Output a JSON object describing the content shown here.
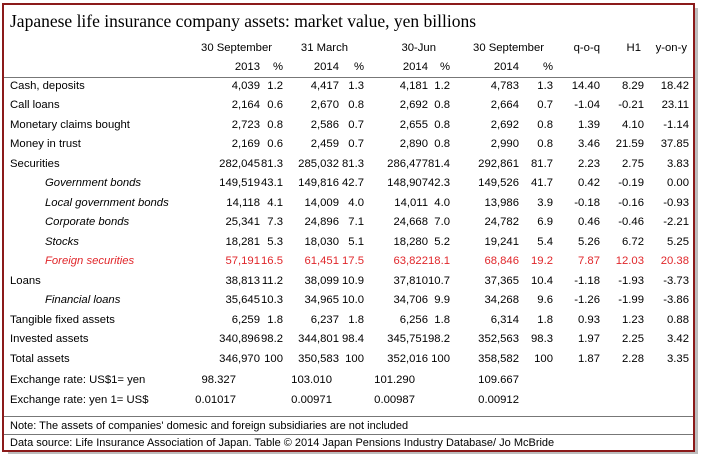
{
  "title": "Japanese life insurance company assets: market value, yen billions",
  "header1": [
    "30 September",
    "31 March",
    "30-Jun",
    "30 September",
    "q-o-q",
    "H1",
    "y-on-y"
  ],
  "header2": [
    "2013",
    "%",
    "2014",
    "%",
    "2014",
    "%",
    "2014",
    "%"
  ],
  "rows": [
    {
      "label": "Cash, deposits",
      "indent": false,
      "red": false,
      "values": [
        "4,039",
        "1.2",
        "4,417",
        "1.3",
        "4,181",
        "1.2",
        "4,783",
        "1.3",
        "14.40",
        "8.29",
        "18.42"
      ]
    },
    {
      "label": "Call loans",
      "indent": false,
      "red": false,
      "values": [
        "2,164",
        "0.6",
        "2,670",
        "0.8",
        "2,692",
        "0.8",
        "2,664",
        "0.7",
        "-1.04",
        "-0.21",
        "23.11"
      ]
    },
    {
      "label": "Monetary claims bought",
      "indent": false,
      "red": false,
      "values": [
        "2,723",
        "0.8",
        "2,586",
        "0.7",
        "2,655",
        "0.8",
        "2,692",
        "0.8",
        "1.39",
        "4.10",
        "-1.14"
      ]
    },
    {
      "label": "Money in trust",
      "indent": false,
      "red": false,
      "values": [
        "2,169",
        "0.6",
        "2,459",
        "0.7",
        "2,890",
        "0.8",
        "2,990",
        "0.8",
        "3.46",
        "21.59",
        "37.85"
      ]
    },
    {
      "label": "Securities",
      "indent": false,
      "red": false,
      "values": [
        "282,045",
        "81.3",
        "285,032",
        "81.3",
        "286,477",
        "81.4",
        "292,861",
        "81.7",
        "2.23",
        "2.75",
        "3.83"
      ]
    },
    {
      "label": "Government bonds",
      "indent": true,
      "red": false,
      "values": [
        "149,519",
        "43.1",
        "149,816",
        "42.7",
        "148,907",
        "42.3",
        "149,526",
        "41.7",
        "0.42",
        "-0.19",
        "0.00"
      ]
    },
    {
      "label": "Local government bonds",
      "indent": true,
      "red": false,
      "values": [
        "14,118",
        "4.1",
        "14,009",
        "4.0",
        "14,011",
        "4.0",
        "13,986",
        "3.9",
        "-0.18",
        "-0.16",
        "-0.93"
      ]
    },
    {
      "label": "Corporate bonds",
      "indent": true,
      "red": false,
      "values": [
        "25,341",
        "7.3",
        "24,896",
        "7.1",
        "24,668",
        "7.0",
        "24,782",
        "6.9",
        "0.46",
        "-0.46",
        "-2.21"
      ]
    },
    {
      "label": "Stocks",
      "indent": true,
      "red": false,
      "values": [
        "18,281",
        "5.3",
        "18,030",
        "5.1",
        "18,280",
        "5.2",
        "19,241",
        "5.4",
        "5.26",
        "6.72",
        "5.25"
      ]
    },
    {
      "label": "Foreign securities",
      "indent": true,
      "red": true,
      "values": [
        "57,191",
        "16.5",
        "61,451",
        "17.5",
        "63,822",
        "18.1",
        "68,846",
        "19.2",
        "7.87",
        "12.03",
        "20.38"
      ]
    },
    {
      "label": "Loans",
      "indent": false,
      "red": false,
      "values": [
        "38,813",
        "11.2",
        "38,099",
        "10.9",
        "37,810",
        "10.7",
        "37,365",
        "10.4",
        "-1.18",
        "-1.93",
        "-3.73"
      ]
    },
    {
      "label": "Financial loans",
      "indent": true,
      "red": false,
      "values": [
        "35,645",
        "10.3",
        "34,965",
        "10.0",
        "34,706",
        "9.9",
        "34,268",
        "9.6",
        "-1.26",
        "-1.99",
        "-3.86"
      ]
    },
    {
      "label": "Tangible fixed assets",
      "indent": false,
      "red": false,
      "values": [
        "6,259",
        "1.8",
        "6,237",
        "1.8",
        "6,256",
        "1.8",
        "6,314",
        "1.8",
        "0.93",
        "1.23",
        "0.88"
      ]
    },
    {
      "label": "Invested assets",
      "indent": false,
      "red": false,
      "values": [
        "340,896",
        "98.2",
        "344,801",
        "98.4",
        "345,751",
        "98.2",
        "352,563",
        "98.3",
        "1.97",
        "2.25",
        "3.42"
      ]
    },
    {
      "label": "Total assets",
      "indent": false,
      "red": false,
      "values": [
        "346,970",
        "100",
        "350,583",
        "100",
        "352,016",
        "100",
        "358,582",
        "100",
        "1.87",
        "2.28",
        "3.35"
      ]
    }
  ],
  "exchange": [
    {
      "label": "Exchange rate: US$1= yen",
      "values": [
        "98.327",
        "103.010",
        "101.290",
        "109.667"
      ]
    },
    {
      "label": "Exchange rate: yen 1= US$",
      "values": [
        "0.01017",
        "0.00971",
        "0.00987",
        "0.00912"
      ]
    }
  ],
  "note": "Note: The assets of companies' domesic and foreign subsidiaries are not included",
  "source": "Data source: Life Insurance Association of Japan. Table © 2014 Japan Pensions Industry Database/ Jo McBride",
  "colors": {
    "border": "#8b1a1a",
    "highlight": "#e0262a"
  }
}
